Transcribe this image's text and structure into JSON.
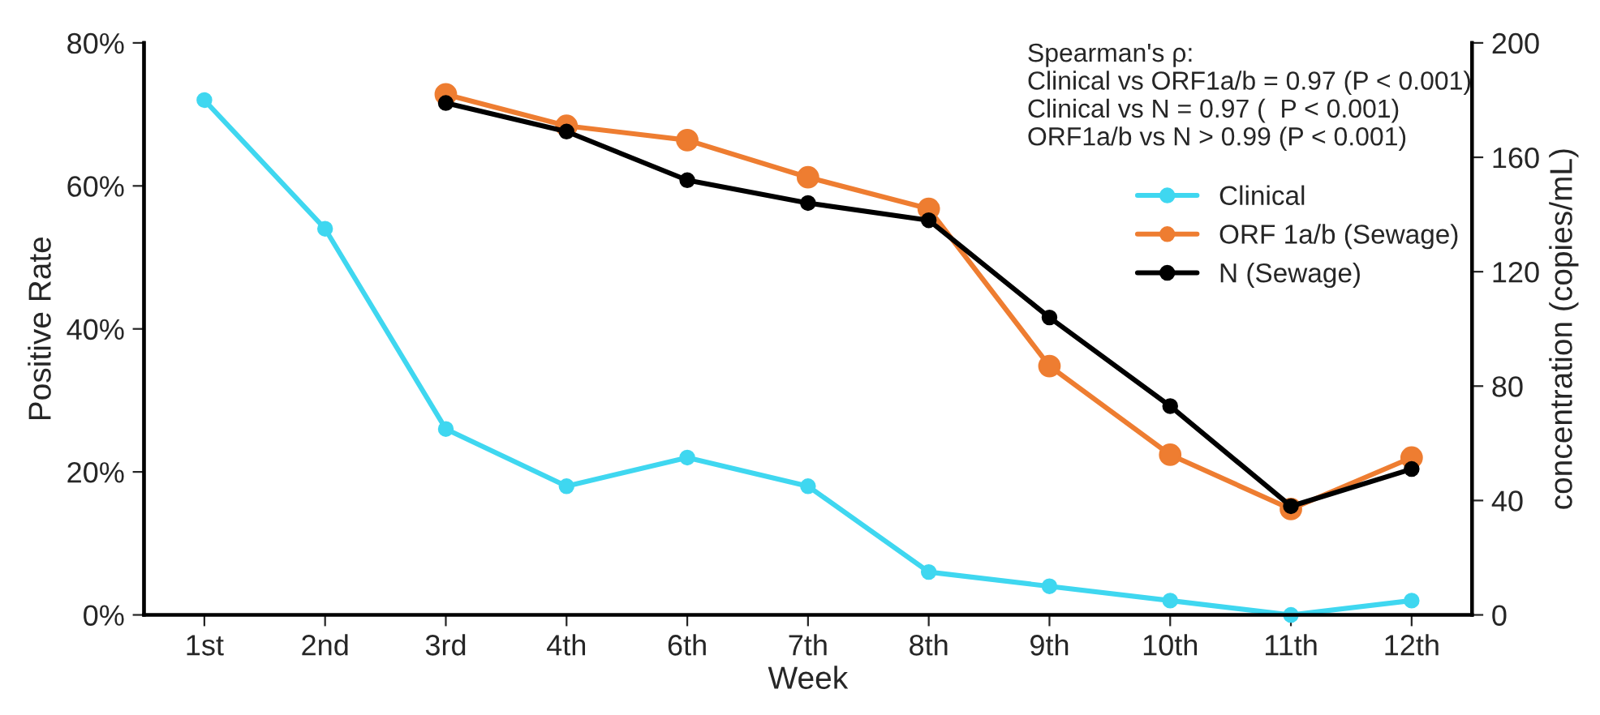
{
  "chart_data": {
    "type": "line",
    "xlabel": "Week",
    "ylabel": "Positive Rate",
    "y2label": "concentration (copies/mL)",
    "categories": [
      "1st",
      "2nd",
      "3rd",
      "4th",
      "6th",
      "7th",
      "8th",
      "9th",
      "10th",
      "11th",
      "12th"
    ],
    "series": [
      {
        "name": "Clinical",
        "color": "#3fd7f0",
        "values": [
          72,
          54,
          26,
          18,
          22,
          18,
          6,
          4,
          2,
          0,
          2
        ]
      },
      {
        "name": "ORF 1a/b (Sewage)",
        "color": "#ee7d31",
        "axis": "y2",
        "values": [
          null,
          null,
          182,
          171,
          166,
          153,
          142,
          87,
          56,
          37,
          55
        ]
      },
      {
        "name": "N (Sewage)",
        "color": "#000000",
        "axis": "y2",
        "values": [
          null,
          null,
          179,
          169,
          152,
          144,
          138,
          104,
          73,
          38,
          51
        ]
      }
    ],
    "ylim": [
      0,
      80
    ],
    "yticks": [
      {
        "value": 0,
        "label": "0%"
      },
      {
        "value": 20,
        "label": "20%"
      },
      {
        "value": 40,
        "label": "40%"
      },
      {
        "value": 60,
        "label": "60%"
      },
      {
        "value": 80,
        "label": "80%"
      }
    ],
    "y2lim": [
      0,
      200
    ],
    "y2ticks": [
      0,
      40,
      80,
      120,
      160,
      200
    ],
    "annotations": [
      "Spearman's ρ:",
      "Clinical vs ORF1a/b = 0.97 (P < 0.001)",
      "Clinical vs N = 0.97 (  P < 0.001)",
      "ORF1a/b vs N > 0.99 (P < 0.001)"
    ],
    "legend": "top right",
    "marker": "circle",
    "line_style": "solid",
    "grid": false
  }
}
